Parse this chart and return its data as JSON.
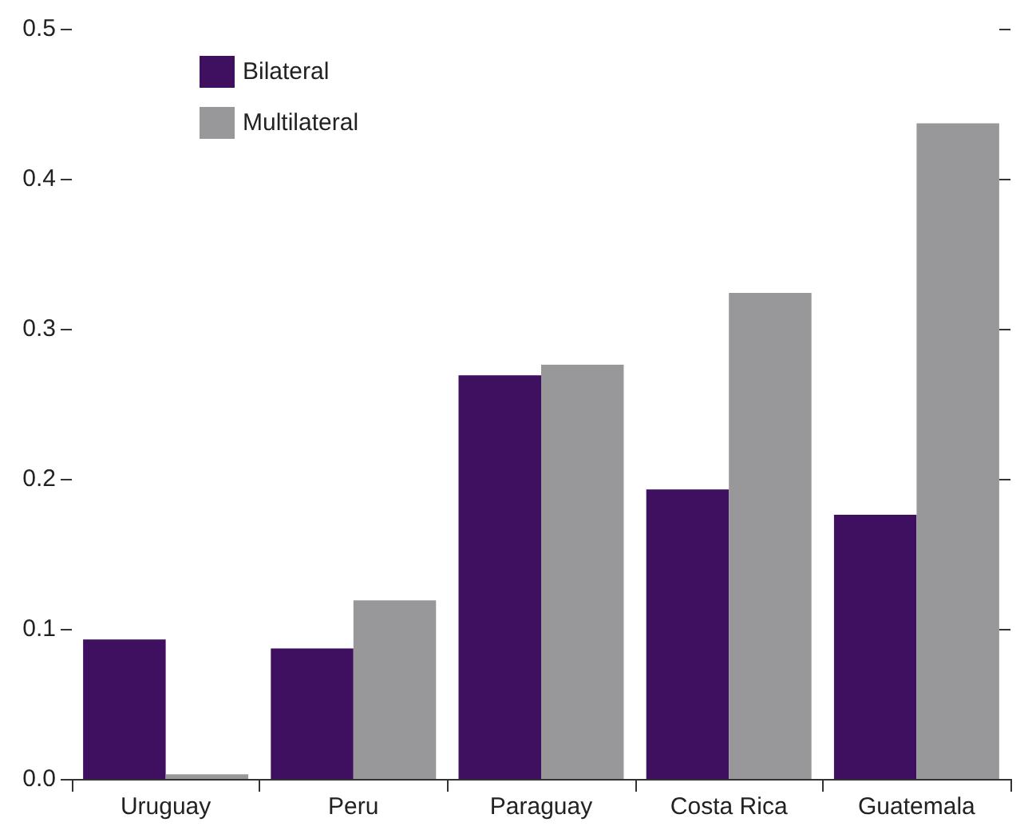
{
  "chart_data": {
    "type": "bar",
    "categories": [
      "Uruguay",
      "Peru",
      "Paraguay",
      "Costa Rica",
      "Guatemala"
    ],
    "series": [
      {
        "name": "Bilateral",
        "color": "#3f1060",
        "values": [
          0.093,
          0.087,
          0.269,
          0.193,
          0.176
        ]
      },
      {
        "name": "Multilateral",
        "color": "#98989b",
        "values": [
          0.003,
          0.119,
          0.276,
          0.324,
          0.437
        ]
      }
    ],
    "ylim": [
      0,
      0.5
    ],
    "yticks": [
      {
        "value": 0,
        "label": "0.0"
      },
      {
        "value": 0.1,
        "label": "0.1"
      },
      {
        "value": 0.2,
        "label": "0.2"
      },
      {
        "value": 0.3,
        "label": "0.3"
      },
      {
        "value": 0.4,
        "label": "0.4"
      },
      {
        "value": 0.5,
        "label": "0.5"
      }
    ],
    "grid": false,
    "legend": "top left"
  }
}
